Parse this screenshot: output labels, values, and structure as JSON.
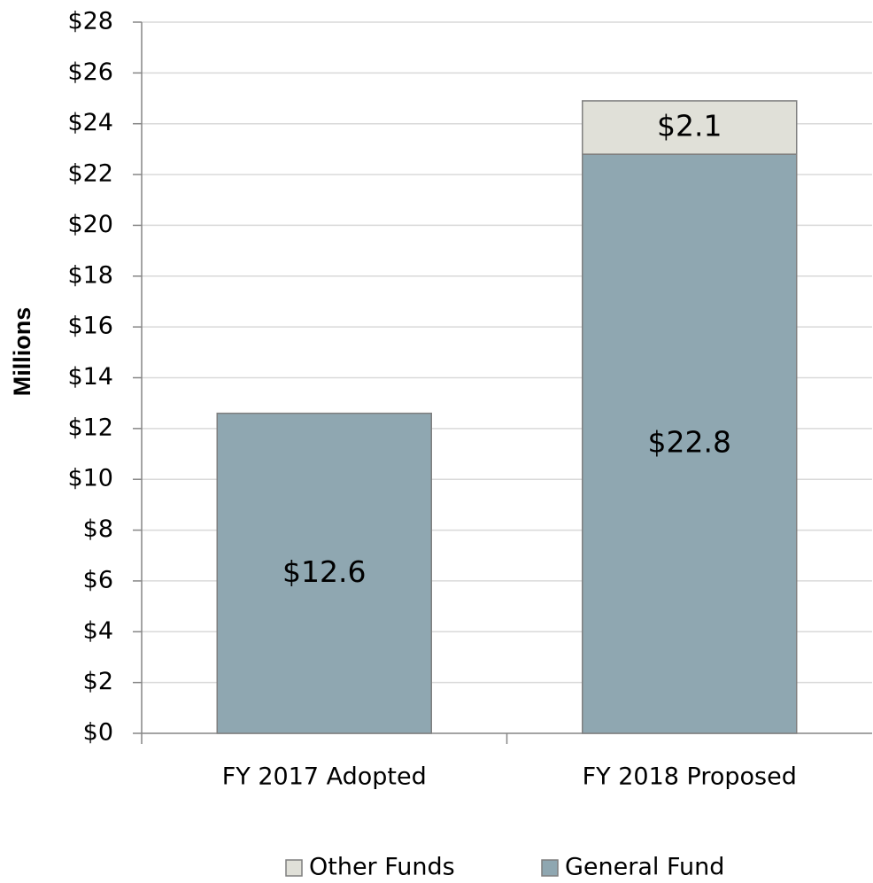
{
  "chart_data": {
    "type": "stacked_bar",
    "y_label": "Millions",
    "categories": [
      "FY 2017 Adopted",
      "FY 2018 Proposed"
    ],
    "series": [
      {
        "name": "General Fund",
        "color": "#8fa7b1",
        "values": [
          12.6,
          22.8
        ],
        "value_labels": [
          "$12.6",
          "$22.8"
        ]
      },
      {
        "name": "Other Funds",
        "color": "#e0e0d8",
        "values": [
          null,
          2.1
        ],
        "value_labels": [
          null,
          "$2.1"
        ]
      }
    ],
    "ylim": [
      0,
      28
    ],
    "yticks": [
      {
        "value": 0,
        "label": "$0"
      },
      {
        "value": 2,
        "label": "$2"
      },
      {
        "value": 4,
        "label": "$4"
      },
      {
        "value": 6,
        "label": "$6"
      },
      {
        "value": 8,
        "label": "$8"
      },
      {
        "value": 10,
        "label": "$10"
      },
      {
        "value": 12,
        "label": "$12"
      },
      {
        "value": 14,
        "label": "$14"
      },
      {
        "value": 16,
        "label": "$16"
      },
      {
        "value": 18,
        "label": "$18"
      },
      {
        "value": 20,
        "label": "$20"
      },
      {
        "value": 22,
        "label": "$22"
      },
      {
        "value": 24,
        "label": "$24"
      },
      {
        "value": 26,
        "label": "$26"
      },
      {
        "value": 28,
        "label": "$28"
      }
    ],
    "grid": true,
    "legend": "bottom"
  }
}
